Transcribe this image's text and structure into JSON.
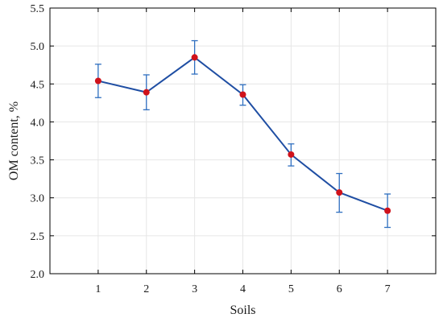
{
  "chart_data": {
    "type": "line",
    "title": "",
    "xlabel": "Soils",
    "ylabel": "OM content, %",
    "x": [
      1,
      2,
      3,
      4,
      5,
      6,
      7
    ],
    "xlim": [
      0,
      8
    ],
    "ylim": [
      2.0,
      5.5
    ],
    "x_ticks": [
      "1",
      "2",
      "3",
      "4",
      "5",
      "6",
      "7"
    ],
    "y_ticks": [
      "2.0",
      "2.5",
      "3.0",
      "3.5",
      "4.0",
      "4.5",
      "5.0",
      "5.5"
    ],
    "grid": true,
    "legend": "none",
    "series": [
      {
        "values": [
          4.54,
          4.39,
          4.85,
          4.36,
          3.57,
          3.07,
          2.83
        ],
        "error_low": [
          4.32,
          4.16,
          4.63,
          4.22,
          3.42,
          2.81,
          2.61
        ],
        "error_high": [
          4.76,
          4.62,
          5.07,
          4.49,
          3.71,
          3.32,
          3.05
        ],
        "line_color": "#1f4ea3",
        "marker_color": "#d0121b",
        "error_color": "#2f6fc0"
      }
    ]
  }
}
